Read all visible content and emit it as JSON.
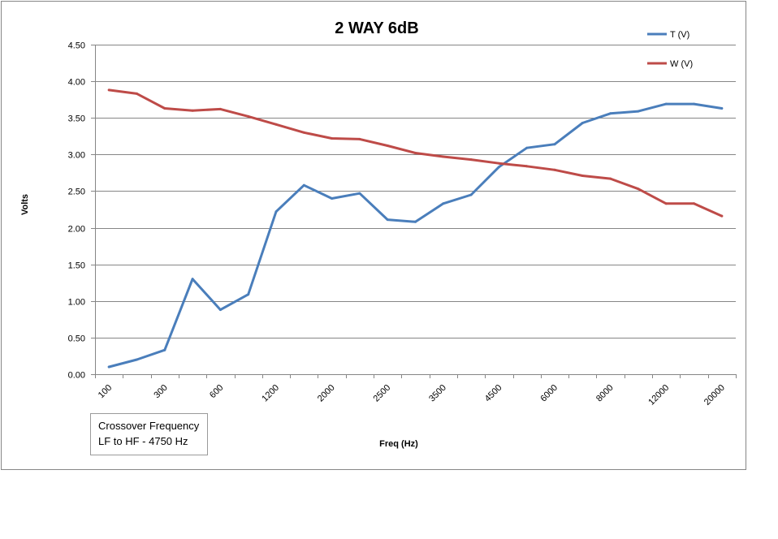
{
  "chart_data": {
    "type": "line",
    "title": "2 WAY 6dB",
    "xlabel": "Freq (Hz)",
    "ylabel": "Volts",
    "ylim": [
      0,
      4.5
    ],
    "yticks": [
      "0.00",
      "0.50",
      "1.00",
      "1.50",
      "2.00",
      "2.50",
      "3.00",
      "3.50",
      "4.00",
      "4.50"
    ],
    "x_tick_labels": [
      "100",
      "300",
      "600",
      "1200",
      "2000",
      "2500",
      "3500",
      "4500",
      "6000",
      "8000",
      "12000",
      "20000"
    ],
    "grid": "horizontal",
    "legend_position": "top-right",
    "series": [
      {
        "name": "T (V)",
        "color": "#4a7ebb",
        "values": [
          0.1,
          0.2,
          0.33,
          1.3,
          0.88,
          1.09,
          2.22,
          2.58,
          2.4,
          2.47,
          2.11,
          2.08,
          2.33,
          2.45,
          2.83,
          3.09,
          3.14,
          3.43,
          3.56,
          3.59,
          3.69,
          3.69,
          3.63
        ]
      },
      {
        "name": "W (V)",
        "color": "#be4b48",
        "values": [
          3.88,
          3.83,
          3.63,
          3.6,
          3.62,
          3.52,
          3.41,
          3.3,
          3.22,
          3.21,
          3.12,
          3.02,
          2.97,
          2.93,
          2.88,
          2.84,
          2.79,
          2.71,
          2.67,
          2.53,
          2.33,
          2.33,
          2.16
        ]
      }
    ]
  },
  "annotation": {
    "line1": "Crossover Frequency",
    "line2": "LF to HF - 4750  Hz"
  }
}
